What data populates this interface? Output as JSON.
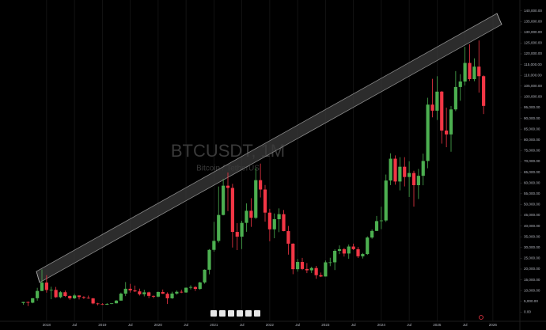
{
  "chart_data": {
    "type": "candlestick",
    "title": "BTCUSDT, 1M",
    "subtitle": "Bitcoin / TetherUS",
    "x": [
      "2017-08",
      "2017-09",
      "2017-10",
      "2017-11",
      "2017-12",
      "2018-01",
      "2018-02",
      "2018-03",
      "2018-04",
      "2018-05",
      "2018-06",
      "2018-07",
      "2018-08",
      "2018-09",
      "2018-10",
      "2018-11",
      "2018-12",
      "2019-01",
      "2019-02",
      "2019-03",
      "2019-04",
      "2019-05",
      "2019-06",
      "2019-07",
      "2019-08",
      "2019-09",
      "2019-10",
      "2019-11",
      "2019-12",
      "2020-01",
      "2020-02",
      "2020-03",
      "2020-04",
      "2020-05",
      "2020-06",
      "2020-07",
      "2020-08",
      "2020-09",
      "2020-10",
      "2020-11",
      "2020-12",
      "2021-01",
      "2021-02",
      "2021-03",
      "2021-04",
      "2021-05",
      "2021-06",
      "2021-07",
      "2021-08",
      "2021-09",
      "2021-10",
      "2021-11",
      "2021-12",
      "2022-01",
      "2022-02",
      "2022-03",
      "2022-04",
      "2022-05",
      "2022-06",
      "2022-07",
      "2022-08",
      "2022-09",
      "2022-10",
      "2022-11",
      "2022-12",
      "2023-01",
      "2023-02",
      "2023-03",
      "2023-04",
      "2023-05",
      "2023-06",
      "2023-07",
      "2023-08",
      "2023-09",
      "2023-10",
      "2023-11",
      "2023-12",
      "2024-01",
      "2024-02",
      "2024-03",
      "2024-04",
      "2024-05",
      "2024-06",
      "2024-07",
      "2024-08",
      "2024-09",
      "2024-10",
      "2024-11",
      "2024-12",
      "2025-01",
      "2025-02",
      "2025-03",
      "2025-04",
      "2025-05",
      "2025-06",
      "2025-07",
      "2025-08",
      "2025-09",
      "2025-10",
      "2025-11"
    ],
    "open": [
      4261,
      4690,
      4379,
      6463,
      9838,
      13716,
      10285,
      10326,
      6922,
      9246,
      7494,
      6391,
      7735,
      7011,
      6626,
      6371,
      4041,
      3701,
      3434,
      3816,
      4102,
      5351,
      8574,
      10854,
      10085,
      9630,
      8293,
      9199,
      7547,
      7195,
      9351,
      8523,
      6412,
      8620,
      9448,
      9138,
      11335,
      11649,
      10776,
      13791,
      19695,
      28923,
      33092,
      45134,
      58739,
      57697,
      37253,
      35046,
      41461,
      47100,
      43820,
      61300,
      56951,
      46216,
      38466,
      43160,
      45510,
      37630,
      31801,
      19942,
      23296,
      20048,
      19422,
      20490,
      17165,
      16541,
      23125,
      23141,
      28465,
      29233,
      27210,
      30471,
      29232,
      25940,
      26962,
      34639,
      37723,
      42283,
      42580,
      61130,
      71280,
      60672,
      67540,
      62772,
      64628,
      58974,
      63327,
      70216,
      96408,
      93576,
      102430,
      84349,
      82550,
      94173,
      104591,
      107136,
      115765,
      108246,
      114049,
      109608
    ],
    "high": [
      4745,
      4939,
      6470,
      11300,
      19798,
      17176,
      11786,
      11700,
      9759,
      10020,
      7760,
      8507,
      7750,
      7410,
      7680,
      6555,
      4313,
      4143,
      4210,
      4140,
      5600,
      9074,
      13970,
      13147,
      12325,
      10905,
      10370,
      9505,
      7750,
      9578,
      10500,
      9188,
      9468,
      10067,
      10380,
      11444,
      12468,
      12050,
      14100,
      19863,
      29300,
      41950,
      58352,
      61844,
      64854,
      59600,
      41330,
      42448,
      50500,
      52920,
      67000,
      69000,
      59053,
      47990,
      45821,
      48189,
      47444,
      40023,
      31986,
      24668,
      25211,
      22799,
      21085,
      21480,
      18387,
      23960,
      25250,
      29184,
      31000,
      29820,
      31431,
      31804,
      30244,
      27483,
      35198,
      38450,
      44700,
      48969,
      63913,
      73777,
      72797,
      71979,
      71997,
      70079,
      65660,
      66498,
      73620,
      99588,
      108353,
      109588,
      102750,
      95000,
      95758,
      111980,
      110530,
      123218,
      124474,
      117900,
      126199,
      110000
    ],
    "low": [
      3400,
      2817,
      4110,
      5325,
      9722,
      9035,
      6000,
      6600,
      6430,
      7032,
      5750,
      6070,
      5880,
      6111,
      6200,
      3652,
      3157,
      3349,
      3373,
      3690,
      4067,
      5333,
      7444,
      9072,
      9320,
      7710,
      7300,
      6515,
      6435,
      6871,
      8450,
      3782,
      6150,
      8117,
      8833,
      8977,
      10518,
      9825,
      10374,
      13195,
      17572,
      28130,
      32296,
      44950,
      46930,
      30000,
      28805,
      29278,
      37332,
      39600,
      43283,
      53256,
      42000,
      32917,
      34322,
      37155,
      37578,
      26700,
      17622,
      18781,
      19520,
      18125,
      18190,
      15476,
      16256,
      16499,
      21351,
      19549,
      26942,
      25811,
      24800,
      28861,
      25166,
      24901,
      26538,
      34097,
      37629,
      38555,
      41884,
      59005,
      59191,
      56552,
      58402,
      53485,
      49000,
      52550,
      58946,
      66835,
      90500,
      89256,
      78258,
      76606,
      74508,
      93377,
      98200,
      105295,
      107350,
      107270,
      102000,
      92000
    ],
    "close": [
      4724,
      4378,
      6463,
      9838,
      13716,
      10285,
      10326,
      6923,
      9246,
      7494,
      6391,
      7730,
      7011,
      6626,
      6372,
      4041,
      3742,
      3437,
      3814,
      4105,
      5351,
      8575,
      10854,
      10085,
      9631,
      8293,
      9199,
      7546,
      7195,
      9352,
      8523,
      6410,
      8620,
      9448,
      9138,
      11335,
      11649,
      10776,
      13791,
      19695,
      28923,
      33092,
      45135,
      58740,
      57694,
      37254,
      35045,
      41462,
      47100,
      43824,
      61299,
      56950,
      46216,
      38466,
      43160,
      45510,
      37630,
      31801,
      19942,
      23293,
      20050,
      19422,
      20491,
      17164,
      16542,
      23125,
      23141,
      28465,
      29233,
      27210,
      30472,
      29232,
      25940,
      26962,
      34639,
      37724,
      42283,
      42582,
      61130,
      71280,
      60672,
      67540,
      62772,
      64628,
      58973,
      63327,
      70215,
      96407,
      93576,
      102429,
      84349,
      82550,
      94172,
      104591,
      107135,
      115764,
      108246,
      114048,
      109608,
      95800
    ],
    "up_color": "#4caf50",
    "down_color": "#f23645",
    "grid": true,
    "xticks": [
      {
        "value": "2018-01",
        "label": "2018"
      },
      {
        "value": "2018-07",
        "label": "Jul"
      },
      {
        "value": "2019-01",
        "label": "2019"
      },
      {
        "value": "2019-07",
        "label": "Jul"
      },
      {
        "value": "2020-01",
        "label": "2020"
      },
      {
        "value": "2020-07",
        "label": "Jul"
      },
      {
        "value": "2021-01",
        "label": "2021"
      },
      {
        "value": "2021-07",
        "label": "Jul"
      },
      {
        "value": "2022-01",
        "label": "2022"
      },
      {
        "value": "2022-07",
        "label": "Jul"
      },
      {
        "value": "2023-01",
        "label": "2023"
      },
      {
        "value": "2023-07",
        "label": "Jul"
      },
      {
        "value": "2024-01",
        "label": "2024"
      },
      {
        "value": "2024-07",
        "label": "Jul"
      },
      {
        "value": "2025-01",
        "label": "2025"
      },
      {
        "value": "2025-07",
        "label": "Jul"
      },
      {
        "value": "2026-01",
        "label": "2026"
      }
    ],
    "ylim": [
      -5000,
      145000
    ],
    "yticks": [
      {
        "value": 0,
        "label": "0.00"
      },
      {
        "value": 5000,
        "label": "5,000.00"
      },
      {
        "value": 10000,
        "label": "10,000.00"
      },
      {
        "value": 15000,
        "label": "15,000.00"
      },
      {
        "value": 20000,
        "label": "20,000.00"
      },
      {
        "value": 25000,
        "label": "25,000.00"
      },
      {
        "value": 30000,
        "label": "30,000.00"
      },
      {
        "value": 35000,
        "label": "35,000.00"
      },
      {
        "value": 40000,
        "label": "40,000.00"
      },
      {
        "value": 45000,
        "label": "45,000.00"
      },
      {
        "value": 50000,
        "label": "50,000.00"
      },
      {
        "value": 55000,
        "label": "55,000.00"
      },
      {
        "value": 60000,
        "label": "60,000.00"
      },
      {
        "value": 65000,
        "label": "65,000.00"
      },
      {
        "value": 70000,
        "label": "70,000.00"
      },
      {
        "value": 75000,
        "label": "75,000.00"
      },
      {
        "value": 80000,
        "label": "80,000.00"
      },
      {
        "value": 85000,
        "label": "85,000.00"
      },
      {
        "value": 90000,
        "label": "90,000.00"
      },
      {
        "value": 95000,
        "label": "95,000.00"
      },
      {
        "value": 100000,
        "label": "100,000.00"
      },
      {
        "value": 105000,
        "label": "105,000.00"
      },
      {
        "value": 110000,
        "label": "110,000.00"
      },
      {
        "value": 115000,
        "label": "115,000.00"
      },
      {
        "value": 120000,
        "label": "120,000.00"
      },
      {
        "value": 125000,
        "label": "125,000.00"
      },
      {
        "value": 130000,
        "label": "130,000.00"
      },
      {
        "value": 135000,
        "label": "135,000.00"
      },
      {
        "value": 140000,
        "label": "140,000.00"
      }
    ]
  }
}
